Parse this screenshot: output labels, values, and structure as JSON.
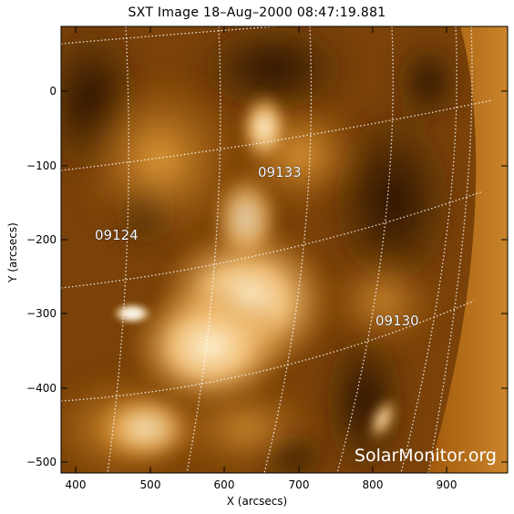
{
  "header": {
    "title": "SXT Image 18–Aug–2000 08:47:19.881"
  },
  "axes": {
    "x_label": "X (arcsecs)",
    "y_label": "Y (arcsecs)",
    "x_ticks": [
      "400",
      "500",
      "600",
      "700",
      "800",
      "900"
    ],
    "y_ticks": [
      "0",
      "−100",
      "−200",
      "−300",
      "−400",
      "−500"
    ]
  },
  "regions": [
    {
      "id": "region-09133",
      "label": "09133"
    },
    {
      "id": "region-09124",
      "label": "09124"
    },
    {
      "id": "region-09130",
      "label": "09130"
    }
  ],
  "watermark": "SolarMonitor.org",
  "colors": {
    "map_dark": "#2a1404",
    "map_mid": "#b86a10",
    "map_bright": "#ffe8b8",
    "grid": "#ffffff"
  }
}
